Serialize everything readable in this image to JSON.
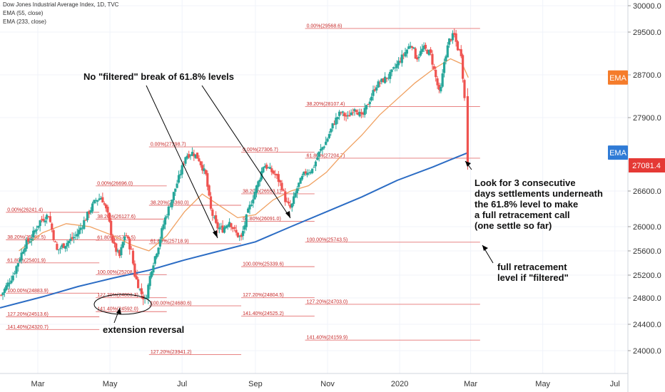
{
  "legend": {
    "title": "Dow Jones Industrial Average Index, 1D, TVC",
    "ema55": "EMA (55, close)",
    "ema233": "EMA (233, close)"
  },
  "badges": {
    "ema55": {
      "label": "EMA",
      "value": 28650,
      "color": "#f57c2b"
    },
    "ema233": {
      "label": "EMA",
      "value": 27300,
      "color": "#2f7bd6"
    },
    "last": {
      "label": "27081.4",
      "value": 27081.4,
      "color": "#e53935"
    }
  },
  "colors": {
    "up": "#26a69a",
    "down": "#ef5350",
    "ema55": "#f0a060",
    "ema233": "#2b6cc4",
    "fib": "#e57373",
    "grid": "#f0f3fa",
    "axis_text": "#333333"
  },
  "chart_data": {
    "type": "candlestick",
    "title": "Dow Jones Industrial Average Index, 1D, TVC",
    "xlabel": "",
    "ylabel": "",
    "ylim": [
      23500,
      30100
    ],
    "y_ticks": [
      24000,
      24400,
      24800,
      25200,
      25600,
      26000,
      26600,
      27081.4,
      27900,
      28700,
      29500,
      30000
    ],
    "y_tick_labels": [
      "24000.0",
      "24400.0",
      "24800.0",
      "25200.0",
      "25600.0",
      "26000.0",
      "26600.0",
      "27081.4",
      "27900.0",
      "28700.0",
      "29500.0",
      "30000.0"
    ],
    "x_tick_labels": [
      "Mar",
      "May",
      "Jul",
      "Sep",
      "Nov",
      "2020",
      "Mar",
      "May",
      "Jul"
    ],
    "x_tick_days": [
      6,
      67,
      128,
      190,
      251,
      312,
      372,
      433,
      494
    ],
    "x_range_days": [
      -26,
      505
    ],
    "grid": true,
    "candle_points": [
      [
        -25,
        24850
      ],
      [
        -15,
        25200
      ],
      [
        -5,
        25700
      ],
      [
        0,
        25800
      ],
      [
        8,
        26100
      ],
      [
        15,
        26200
      ],
      [
        22,
        25600
      ],
      [
        28,
        25700
      ],
      [
        35,
        25800
      ],
      [
        40,
        25900
      ],
      [
        48,
        26200
      ],
      [
        55,
        26450
      ],
      [
        60,
        26500
      ],
      [
        65,
        26200
      ],
      [
        70,
        25700
      ],
      [
        75,
        25500
      ],
      [
        80,
        25900
      ],
      [
        85,
        25600
      ],
      [
        88,
        25200
      ],
      [
        93,
        24900
      ],
      [
        97,
        24750
      ],
      [
        102,
        25300
      ],
      [
        108,
        25700
      ],
      [
        113,
        26100
      ],
      [
        120,
        26500
      ],
      [
        126,
        26900
      ],
      [
        131,
        27250
      ],
      [
        137,
        27300
      ],
      [
        142,
        27200
      ],
      [
        148,
        26900
      ],
      [
        152,
        26300
      ],
      [
        157,
        26000
      ],
      [
        162,
        25950
      ],
      [
        168,
        26100
      ],
      [
        173,
        25900
      ],
      [
        178,
        25800
      ],
      [
        183,
        26200
      ],
      [
        188,
        26500
      ],
      [
        193,
        26800
      ],
      [
        197,
        27100
      ],
      [
        202,
        27000
      ],
      [
        207,
        26900
      ],
      [
        212,
        26700
      ],
      [
        216,
        26400
      ],
      [
        220,
        26300
      ],
      [
        226,
        26700
      ],
      [
        232,
        26950
      ],
      [
        238,
        27000
      ],
      [
        244,
        27300
      ],
      [
        250,
        27500
      ],
      [
        256,
        27800
      ],
      [
        262,
        28000
      ],
      [
        268,
        27900
      ],
      [
        274,
        28100
      ],
      [
        280,
        27900
      ],
      [
        286,
        28200
      ],
      [
        292,
        28500
      ],
      [
        298,
        28600
      ],
      [
        304,
        28700
      ],
      [
        310,
        28900
      ],
      [
        316,
        29100
      ],
      [
        322,
        29300
      ],
      [
        326,
        29000
      ],
      [
        332,
        29200
      ],
      [
        338,
        29100
      ],
      [
        342,
        28700
      ],
      [
        346,
        28300
      ],
      [
        350,
        29000
      ],
      [
        354,
        29350
      ],
      [
        358,
        29450
      ],
      [
        361,
        29200
      ],
      [
        364,
        29100
      ],
      [
        366,
        28500
      ],
      [
        368,
        27900
      ],
      [
        370,
        27081.4
      ]
    ],
    "ema55_points": [
      [
        -10,
        25600
      ],
      [
        10,
        25900
      ],
      [
        30,
        26050
      ],
      [
        50,
        26000
      ],
      [
        70,
        25850
      ],
      [
        85,
        25700
      ],
      [
        100,
        25600
      ],
      [
        115,
        25850
      ],
      [
        130,
        26250
      ],
      [
        145,
        26550
      ],
      [
        160,
        26350
      ],
      [
        175,
        26150
      ],
      [
        190,
        26200
      ],
      [
        205,
        26450
      ],
      [
        220,
        26600
      ],
      [
        235,
        26700
      ],
      [
        250,
        26950
      ],
      [
        265,
        27300
      ],
      [
        280,
        27600
      ],
      [
        295,
        27950
      ],
      [
        310,
        28250
      ],
      [
        325,
        28550
      ],
      [
        340,
        28800
      ],
      [
        355,
        29000
      ],
      [
        365,
        28900
      ],
      [
        370,
        28650
      ]
    ],
    "ema233_points": [
      [
        -26,
        24650
      ],
      [
        10,
        24820
      ],
      [
        40,
        25000
      ],
      [
        70,
        25150
      ],
      [
        100,
        25280
      ],
      [
        130,
        25450
      ],
      [
        160,
        25600
      ],
      [
        190,
        25750
      ],
      [
        220,
        26000
      ],
      [
        250,
        26250
      ],
      [
        280,
        26500
      ],
      [
        310,
        26800
      ],
      [
        340,
        27050
      ],
      [
        360,
        27220
      ],
      [
        370,
        27300
      ]
    ],
    "fib_sets": [
      {
        "levels": [
          {
            "label": "0.00%(26241.4)",
            "value": 26241.4
          },
          {
            "label": "38.20%(25782.5)",
            "value": 25782.5
          },
          {
            "label": "61.80%(25401.9)",
            "value": 25401.9
          },
          {
            "label": "100.00%(24883.9)",
            "value": 24883.9
          },
          {
            "label": "127.20%(24513.6)",
            "value": 24513.6
          },
          {
            "label": "141.40%(24320.7)",
            "value": 24320.7
          }
        ],
        "start_day": -21,
        "end_day": 58
      },
      {
        "levels": [
          {
            "label": "0.00%(26696.0)",
            "value": 26696.0
          },
          {
            "label": "38.20%(26127.6)",
            "value": 26127.6
          },
          {
            "label": "61.80%(25776.5)",
            "value": 25776.5
          },
          {
            "label": "100.00%(25208.0)",
            "value": 25208.0
          },
          {
            "label": "127.20%(24803.3)",
            "value": 24803.3
          },
          {
            "label": "141.40%(24592.0)",
            "value": 24592.0
          }
        ],
        "start_day": 55,
        "end_day": 115
      },
      {
        "levels": [
          {
            "label": "0.00%(27398.7)",
            "value": 27398.7
          },
          {
            "label": "38.20%(26360.0)",
            "value": 26360.0
          },
          {
            "label": "61.80%(25718.9)",
            "value": 25718.9
          },
          {
            "label": "100.00%(24680.6)",
            "value": 24680.6
          },
          {
            "label": "127.20%(23941.2)",
            "value": 23941.2
          }
        ],
        "start_day": 100,
        "end_day": 178
      },
      {
        "levels": [
          {
            "label": "0.00%(27306.7)",
            "value": 27306.7
          },
          {
            "label": "38.20%(26553.1)",
            "value": 26553.1
          },
          {
            "label": "61.80%(26091.0)",
            "value": 26091.0
          },
          {
            "label": "100.00%(25339.6)",
            "value": 25339.6
          },
          {
            "label": "127.20%(24804.5)",
            "value": 24804.5
          },
          {
            "label": "141.40%(24525.2)",
            "value": 24525.2
          }
        ],
        "start_day": 178,
        "end_day": 240
      },
      {
        "levels": [
          {
            "label": "0.00%(29568.6)",
            "value": 29568.6
          },
          {
            "label": "38.20%(28107.4)",
            "value": 28107.4
          },
          {
            "label": "61.80%(27204.7)",
            "value": 27204.7
          },
          {
            "label": "100.00%(25743.5)",
            "value": 25743.5
          },
          {
            "label": "127.20%(24703.0)",
            "value": 24703.0
          },
          {
            "label": "141.40%(24159.9)",
            "value": 24159.9
          }
        ],
        "start_day": 232,
        "end_day": 380
      }
    ],
    "annotations": [
      {
        "text_lines": [
          "No \"filtered\" break of 61.8% levels"
        ],
        "anchor": "top-left-center"
      },
      {
        "text_lines": [
          "Look for 3 consecutive",
          "days settlements underneath",
          "the 61.8% level to make",
          "a full retracement call",
          "(one settle so far)"
        ],
        "anchor": "right"
      },
      {
        "text_lines": [
          "full retracement",
          "level if \"filtered\""
        ],
        "anchor": "right"
      },
      {
        "text_lines": [
          "extension reversal"
        ],
        "anchor": "bottom-left"
      }
    ]
  }
}
